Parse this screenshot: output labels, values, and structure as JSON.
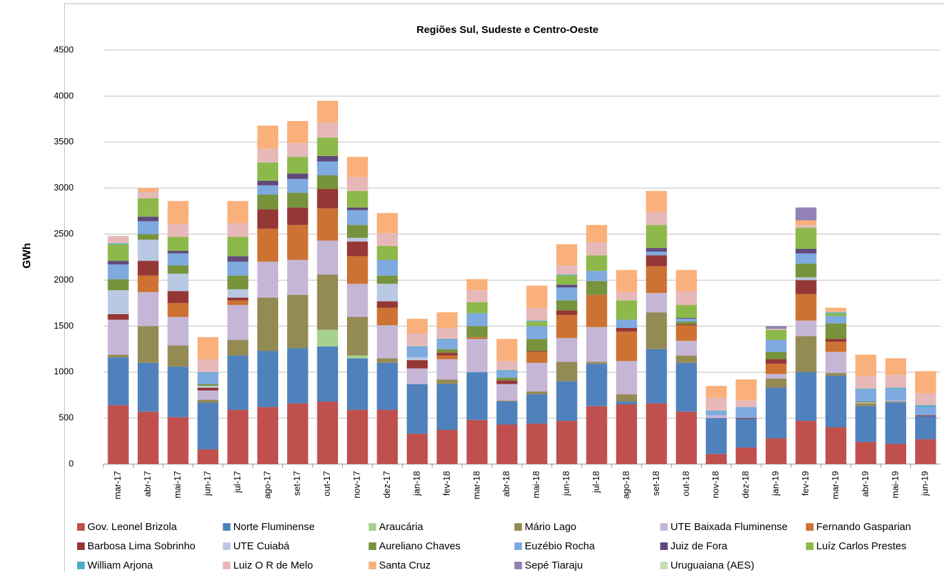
{
  "chart_data": {
    "type": "stacked_bar",
    "title": "Regiões Sul, Sudeste e Centro-Oeste",
    "y_label": "GWh",
    "categories": [
      "mar-17",
      "abr-17",
      "mai-17",
      "jun-17",
      "jul-17",
      "ago-17",
      "set-17",
      "out-17",
      "nov-17",
      "dez-17",
      "jan-18",
      "fev-18",
      "mar-18",
      "abr-18",
      "mai-18",
      "jun-18",
      "jul-18",
      "ago-18",
      "set-18",
      "out-18",
      "nov-18",
      "dez-18",
      "jan-19",
      "fev-19",
      "mar-19",
      "abr-19",
      "mai-19",
      "jun-19"
    ],
    "series": [
      {
        "name": "Gov. Leonel Brizola",
        "color": "#c0504d",
        "values": [
          640,
          570,
          510,
          160,
          590,
          620,
          660,
          680,
          590,
          590,
          330,
          370,
          480,
          430,
          440,
          470,
          630,
          650,
          660,
          570,
          110,
          180,
          280,
          470,
          400,
          240,
          220,
          270
        ]
      },
      {
        "name": "Norte Fluminense",
        "color": "#4f81bd",
        "values": [
          520,
          530,
          550,
          510,
          590,
          610,
          600,
          600,
          560,
          510,
          540,
          500,
          520,
          250,
          320,
          430,
          460,
          30,
          590,
          530,
          390,
          310,
          550,
          530,
          560,
          390,
          450,
          250
        ]
      },
      {
        "name": "Araucária",
        "color": "#a9d18e",
        "values": [
          0,
          0,
          0,
          0,
          0,
          0,
          0,
          180,
          30,
          0,
          0,
          0,
          0,
          0,
          0,
          0,
          0,
          0,
          0,
          0,
          0,
          0,
          0,
          0,
          0,
          0,
          0,
          0
        ]
      },
      {
        "name": "Mário Lago",
        "color": "#948a54",
        "values": [
          30,
          400,
          230,
          30,
          170,
          580,
          580,
          600,
          420,
          50,
          0,
          50,
          0,
          10,
          30,
          210,
          20,
          80,
          400,
          80,
          0,
          0,
          100,
          390,
          30,
          30,
          10,
          0
        ]
      },
      {
        "name": "UTE Baixada Fluminense",
        "color": "#c6b6d6",
        "values": [
          380,
          370,
          310,
          100,
          380,
          390,
          380,
          370,
          360,
          360,
          170,
          220,
          360,
          180,
          310,
          260,
          380,
          360,
          210,
          160,
          30,
          0,
          50,
          170,
          230,
          10,
          10,
          0
        ]
      },
      {
        "name": "Fernando Gasparian",
        "color": "#cd7232",
        "values": [
          0,
          180,
          150,
          0,
          50,
          360,
          380,
          350,
          300,
          190,
          0,
          40,
          20,
          0,
          120,
          250,
          350,
          320,
          290,
          170,
          0,
          0,
          110,
          290,
          110,
          0,
          0,
          0
        ]
      },
      {
        "name": "Barbosa Lima Sobrinho",
        "color": "#953735",
        "values": [
          60,
          160,
          130,
          30,
          30,
          210,
          190,
          210,
          160,
          70,
          90,
          30,
          0,
          40,
          10,
          50,
          0,
          40,
          120,
          10,
          0,
          10,
          50,
          150,
          30,
          0,
          0,
          10
        ]
      },
      {
        "name": "UTE Cuiabá",
        "color": "#b9c9e3",
        "values": [
          260,
          230,
          190,
          20,
          90,
          0,
          0,
          0,
          40,
          190,
          30,
          0,
          0,
          0,
          0,
          0,
          0,
          0,
          0,
          0,
          0,
          0,
          0,
          30,
          0,
          0,
          0,
          0
        ]
      },
      {
        "name": "Aureliano Chaves",
        "color": "#77933c",
        "values": [
          120,
          60,
          90,
          20,
          150,
          160,
          160,
          150,
          140,
          90,
          0,
          40,
          120,
          30,
          130,
          110,
          150,
          0,
          0,
          30,
          0,
          0,
          80,
          150,
          170,
          10,
          0,
          0
        ]
      },
      {
        "name": "Euzébio Rocha",
        "color": "#7eaae0",
        "values": [
          160,
          140,
          130,
          120,
          150,
          100,
          150,
          150,
          160,
          170,
          110,
          100,
          140,
          70,
          140,
          140,
          110,
          90,
          40,
          30,
          40,
          120,
          130,
          110,
          80,
          130,
          130,
          90
        ]
      },
      {
        "name": "Juiz de Fora",
        "color": "#604a7b",
        "values": [
          40,
          50,
          30,
          0,
          60,
          50,
          60,
          60,
          30,
          0,
          0,
          0,
          0,
          0,
          0,
          30,
          0,
          0,
          40,
          10,
          0,
          0,
          0,
          50,
          0,
          0,
          0,
          0
        ]
      },
      {
        "name": "Luíz Carlos Prestes",
        "color": "#8db84a",
        "values": [
          180,
          200,
          150,
          0,
          210,
          200,
          180,
          200,
          180,
          150,
          0,
          0,
          120,
          0,
          50,
          100,
          170,
          210,
          250,
          140,
          0,
          0,
          110,
          230,
          30,
          0,
          0,
          0
        ]
      },
      {
        "name": "William Arjona",
        "color": "#4bacc6",
        "values": [
          10,
          0,
          0,
          10,
          0,
          0,
          0,
          0,
          0,
          0,
          10,
          10,
          0,
          10,
          10,
          10,
          0,
          0,
          0,
          0,
          10,
          0,
          0,
          0,
          10,
          10,
          10,
          20
        ]
      },
      {
        "name": "Luiz O R de Melo",
        "color": "#e6b9b8",
        "values": [
          80,
          70,
          140,
          140,
          150,
          150,
          150,
          160,
          150,
          140,
          140,
          120,
          130,
          100,
          140,
          100,
          140,
          90,
          140,
          150,
          140,
          70,
          10,
          30,
          10,
          140,
          140,
          130
        ]
      },
      {
        "name": "Santa Cruz",
        "color": "#fab07a",
        "values": [
          0,
          40,
          250,
          240,
          240,
          250,
          240,
          240,
          220,
          220,
          160,
          170,
          120,
          240,
          240,
          230,
          190,
          240,
          230,
          230,
          130,
          230,
          0,
          50,
          40,
          230,
          180,
          240
        ]
      },
      {
        "name": "Sepé Tiaraju",
        "color": "#9382b6",
        "values": [
          0,
          0,
          0,
          0,
          0,
          0,
          0,
          0,
          0,
          0,
          0,
          0,
          0,
          0,
          0,
          0,
          0,
          0,
          0,
          0,
          0,
          0,
          30,
          140,
          0,
          0,
          0,
          0
        ]
      },
      {
        "name": "Uruguaiana (AES)",
        "color": "#c8dcb4",
        "values": [
          0,
          0,
          0,
          0,
          0,
          0,
          0,
          0,
          0,
          0,
          0,
          0,
          0,
          0,
          0,
          0,
          0,
          0,
          0,
          0,
          0,
          0,
          0,
          0,
          0,
          0,
          0,
          0
        ]
      }
    ],
    "ylim": [
      0,
      4500
    ],
    "yticks": [
      0,
      500,
      1000,
      1500,
      2000,
      2500,
      3000,
      3500,
      4000,
      4500
    ],
    "grid": true,
    "legend": "bottom"
  }
}
